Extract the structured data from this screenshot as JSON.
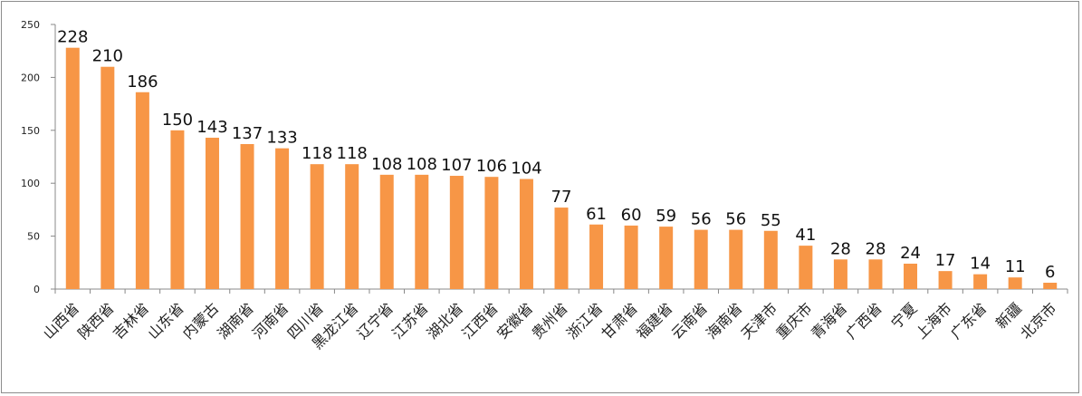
{
  "chart_data": {
    "type": "bar",
    "title": "",
    "xlabel": "",
    "ylabel": "",
    "ylim": [
      0,
      250
    ],
    "yticks": [
      0,
      50,
      100,
      150,
      200,
      250
    ],
    "grid": false,
    "legend": "none",
    "bar_color": "#F79646",
    "categories": [
      "山西省",
      "陕西省",
      "吉林省",
      "山东省",
      "内蒙古",
      "湖南省",
      "河南省",
      "四川省",
      "黑龙江省",
      "辽宁省",
      "江苏省",
      "湖北省",
      "江西省",
      "安徽省",
      "贵州省",
      "浙江省",
      "甘肃省",
      "福建省",
      "云南省",
      "海南省",
      "天津市",
      "重庆市",
      "青海省",
      "广西省",
      "宁夏",
      "上海市",
      "广东省",
      "新疆",
      "北京市"
    ],
    "values": [
      228,
      210,
      186,
      150,
      143,
      137,
      133,
      118,
      118,
      108,
      108,
      107,
      106,
      104,
      77,
      61,
      60,
      59,
      56,
      56,
      55,
      41,
      28,
      28,
      24,
      17,
      14,
      11,
      6
    ]
  }
}
